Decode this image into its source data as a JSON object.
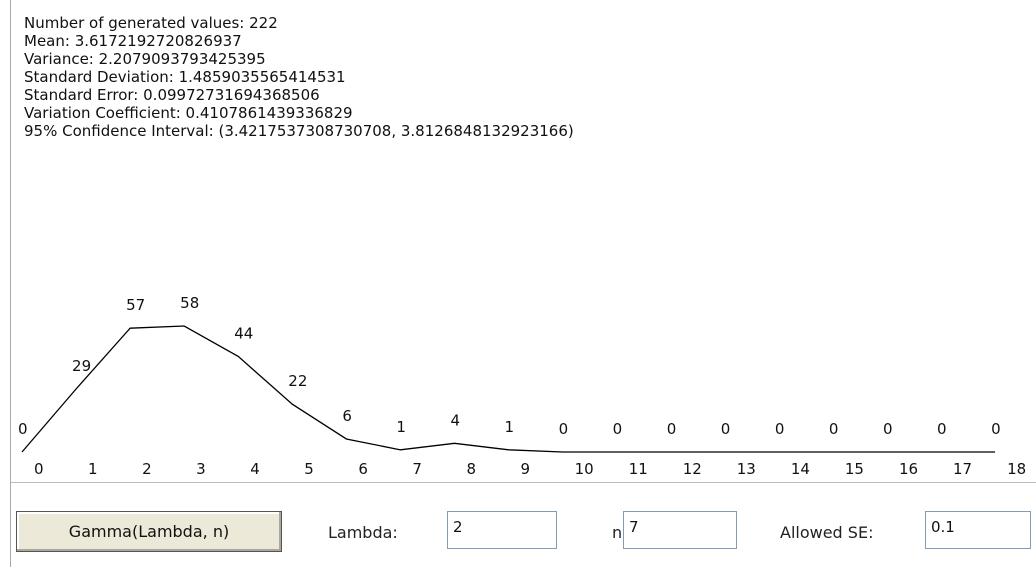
{
  "stats": [
    "Number of generated values: 222",
    "Mean: 3.6172192720826937",
    "Variance: 2.2079093793425395",
    "Standard Deviation: 1.4859035565414531",
    "Standard Error: 0.09972731694368506",
    "Variation Coefficient: 0.4107861439336829",
    "95% Confidence Interval: (3.4217537308730708, 3.8126848132923166)"
  ],
  "chart_data": {
    "type": "line",
    "categories": [
      "0",
      "1",
      "2",
      "3",
      "4",
      "5",
      "6",
      "7",
      "8",
      "9",
      "10",
      "11",
      "12",
      "13",
      "14",
      "15",
      "16",
      "17",
      "18"
    ],
    "values": [
      0,
      29,
      57,
      58,
      44,
      22,
      6,
      1,
      4,
      1,
      0,
      0,
      0,
      0,
      0,
      0,
      0,
      0,
      0
    ],
    "color": "#000000"
  },
  "controls": {
    "button": "Gamma(Lambda, n)",
    "fields": [
      {
        "label": "Lambda:",
        "value": 2
      },
      {
        "label": "n:",
        "value": 7
      },
      {
        "label": "Allowed SE:",
        "value": 0.1
      }
    ]
  }
}
